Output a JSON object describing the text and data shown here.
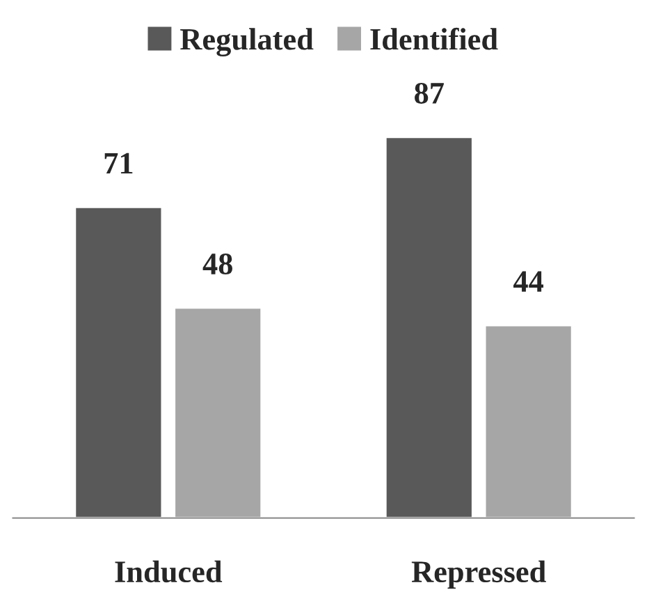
{
  "chart_data": {
    "type": "bar",
    "categories": [
      "Induced",
      "Repressed"
    ],
    "series": [
      {
        "name": "Regulated",
        "color": "#595959",
        "values": [
          71,
          87
        ]
      },
      {
        "name": "Identified",
        "color": "#a6a6a6",
        "values": [
          48,
          44
        ]
      }
    ],
    "data_labels": true,
    "legend": "top",
    "grid": false
  }
}
